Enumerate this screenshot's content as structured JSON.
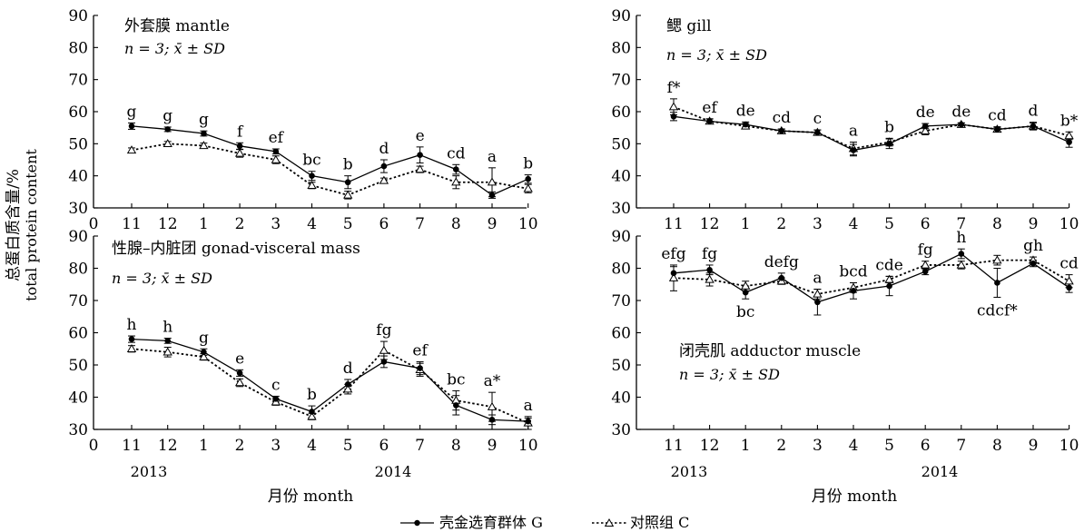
{
  "chart_data": {
    "type": "line",
    "ylabel_cn": "总蛋白质含量/%",
    "ylabel_en": "total protein content",
    "xlabel": "月份 month",
    "categories": [
      "11",
      "12",
      "1",
      "2",
      "3",
      "4",
      "5",
      "6",
      "7",
      "8",
      "9",
      "10"
    ],
    "year_labels": [
      "2013",
      "2014"
    ],
    "series_names": [
      "壳金选育群体 G",
      "对照组 C"
    ],
    "colors": {
      "G": "#000000",
      "C": "#000000"
    },
    "grid": false,
    "legend_position": "bottom-center",
    "panels": [
      {
        "id": "mantle",
        "title": "外套膜 mantle",
        "stats": "n = 3; x̄ ± SD",
        "ylim": [
          30,
          90
        ],
        "yticks": [
          30,
          40,
          50,
          60,
          70,
          80,
          90
        ],
        "x_ticks": [
          "0",
          "11",
          "12",
          "1",
          "2",
          "3",
          "4",
          "5",
          "6",
          "7",
          "8",
          "9",
          "10"
        ],
        "G": [
          55.5,
          54.5,
          53.2,
          49.3,
          47.6,
          40.0,
          38.0,
          43.0,
          46.5,
          42.0,
          34.0,
          39.0
        ],
        "G_err": [
          1.0,
          0.7,
          0.8,
          1.0,
          0.8,
          1.4,
          2.0,
          2.0,
          2.5,
          1.5,
          1.0,
          1.3
        ],
        "C": [
          48.0,
          50.0,
          49.4,
          47.0,
          45.0,
          37.0,
          34.0,
          38.5,
          42.0,
          38.0,
          38.0,
          36.0
        ],
        "C_err": [
          0.7,
          0.7,
          0.8,
          1.2,
          1.2,
          1.0,
          1.2,
          0.8,
          1.0,
          2.0,
          4.5,
          1.3
        ],
        "letters": [
          "g",
          "g",
          "g",
          "f",
          "ef",
          "bc",
          "b",
          "d",
          "e",
          "cd",
          "a",
          "b"
        ]
      },
      {
        "id": "gill",
        "title": "鳃 gill",
        "stats": "n = 3; x̄ ± SD",
        "ylim": [
          30,
          90
        ],
        "yticks": [
          30,
          40,
          50,
          60,
          70,
          80,
          90
        ],
        "x_ticks": [
          "11",
          "12",
          "1",
          "2",
          "3",
          "4",
          "5",
          "6",
          "7",
          "8",
          "9",
          "10"
        ],
        "G": [
          58.5,
          57.0,
          56.0,
          54.0,
          53.5,
          48.0,
          50.0,
          55.5,
          56.0,
          54.5,
          55.5,
          50.5
        ],
        "G_err": [
          1.3,
          0.7,
          0.8,
          0.6,
          0.8,
          1.8,
          1.5,
          0.8,
          0.5,
          0.6,
          1.2,
          1.6
        ],
        "C": [
          61.5,
          57.0,
          55.5,
          54.0,
          53.5,
          48.5,
          50.5,
          54.0,
          56.0,
          54.5,
          55.5,
          52.5
        ],
        "C_err": [
          2.5,
          0.8,
          0.8,
          0.6,
          0.8,
          2.0,
          1.2,
          1.2,
          0.5,
          0.8,
          1.0,
          1.2
        ],
        "letters": [
          "f*",
          "ef",
          "de",
          "cd",
          "c",
          "a",
          "b",
          "de",
          "de",
          "cd",
          "d",
          "b*"
        ]
      },
      {
        "id": "gonad",
        "title": "性腺–内脏团 gonad-visceral mass",
        "stats": "n = 3; x̄ ± SD",
        "ylim": [
          30,
          90
        ],
        "yticks": [
          30,
          40,
          50,
          60,
          70,
          80,
          90
        ],
        "x_ticks": [
          "0",
          "11",
          "12",
          "1",
          "2",
          "3",
          "4",
          "5",
          "6",
          "7",
          "8",
          "9",
          "10"
        ],
        "G": [
          58.0,
          57.5,
          54.0,
          47.5,
          39.5,
          35.5,
          44.0,
          51.0,
          49.0,
          37.5,
          33.0,
          32.5
        ],
        "G_err": [
          1.0,
          0.8,
          1.0,
          1.0,
          0.8,
          1.8,
          1.5,
          1.8,
          2.0,
          3.0,
          1.5,
          1.0
        ],
        "C": [
          55.0,
          54.0,
          52.5,
          44.5,
          38.5,
          34.0,
          42.5,
          54.5,
          48.5,
          39.0,
          37.0,
          32.0
        ],
        "C_err": [
          1.0,
          1.5,
          1.0,
          1.2,
          1.0,
          1.0,
          1.5,
          2.8,
          2.0,
          3.0,
          4.5,
          2.0
        ],
        "letters": [
          "h",
          "h",
          "g",
          "e",
          "c",
          "b",
          "d",
          "fg",
          "ef",
          "bc",
          "a*",
          "a"
        ]
      },
      {
        "id": "adductor",
        "title": "闭壳肌 adductor muscle",
        "stats": "n = 3; x̄ ± SD",
        "ylim": [
          30,
          90
        ],
        "yticks": [
          30,
          40,
          50,
          60,
          70,
          80,
          90
        ],
        "x_ticks": [
          "11",
          "12",
          "1",
          "2",
          "3",
          "4",
          "5",
          "6",
          "7",
          "8",
          "9",
          "10"
        ],
        "G": [
          78.5,
          79.5,
          72.5,
          77.0,
          69.5,
          73.0,
          74.5,
          79.0,
          84.5,
          75.5,
          81.5,
          74.0
        ],
        "G_err": [
          2.0,
          1.5,
          2.0,
          1.5,
          4.0,
          2.5,
          3.0,
          1.0,
          1.5,
          4.5,
          1.0,
          1.5
        ],
        "C": [
          77.0,
          76.5,
          74.5,
          76.0,
          72.0,
          74.0,
          76.5,
          81.0,
          81.0,
          82.5,
          82.5,
          76.0
        ],
        "C_err": [
          4.0,
          2.0,
          1.5,
          1.0,
          1.5,
          1.5,
          1.0,
          1.2,
          1.2,
          1.5,
          1.0,
          2.0
        ],
        "letters": [
          "efg",
          "fg",
          "bc",
          "defg",
          "a",
          "bcd",
          "cde",
          "fg",
          "h",
          "cdcf*",
          "gh",
          "cd"
        ]
      }
    ]
  }
}
